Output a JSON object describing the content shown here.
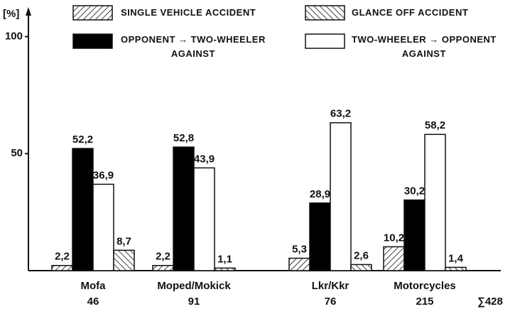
{
  "chart_data": {
    "type": "bar",
    "y_label": "[%]",
    "categories": [
      "Mofa",
      "Moped/Mokick",
      "Lkr/Kkr",
      "Motorcycles"
    ],
    "category_counts": [
      46,
      91,
      76,
      215
    ],
    "total_label": "∑428",
    "ylim": [
      0,
      112
    ],
    "yticks": [
      50,
      100
    ],
    "series": [
      {
        "name": "SINGLE VEHICLE ACCIDENT",
        "color": "#ffffff",
        "pattern": "hatch-up",
        "values": [
          2.2,
          2.2,
          5.3,
          10.2
        ],
        "value_labels": [
          "2,2",
          "2,2",
          "5,3",
          "10,2"
        ]
      },
      {
        "name": "OPPONENT → TWO-WHEELER\nAGAINST",
        "color": "#000000",
        "pattern": null,
        "values": [
          52.2,
          52.8,
          28.9,
          30.2
        ],
        "value_labels": [
          "52,2",
          "52,8",
          "28,9",
          "30,2"
        ]
      },
      {
        "name": "TWO-WHEELER → OPPONENT\nAGAINST",
        "color": "#ffffff",
        "pattern": null,
        "values": [
          36.9,
          43.9,
          63.2,
          58.2
        ],
        "value_labels": [
          "36,9",
          "43,9",
          "63,2",
          "58,2"
        ]
      },
      {
        "name": "GLANCE OFF ACCIDENT",
        "color": "#ffffff",
        "pattern": "hatch-down",
        "values": [
          8.7,
          1.1,
          2.6,
          1.4
        ],
        "value_labels": [
          "8,7",
          "1,1",
          "2,6",
          "1,4"
        ]
      }
    ]
  }
}
